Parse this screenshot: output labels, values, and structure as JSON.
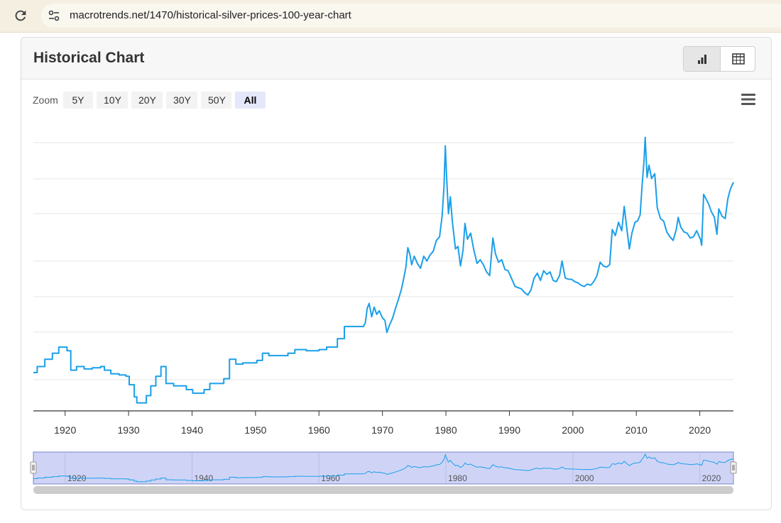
{
  "browser": {
    "url": "macrotrends.net/1470/historical-silver-prices-100-year-chart",
    "reload_icon": "reload-icon",
    "site_settings_icon": "tune-icon"
  },
  "card": {
    "title": "Historical Chart",
    "view_buttons": [
      {
        "name": "chart-view-button",
        "icon": "bar-chart-icon",
        "active": true
      },
      {
        "name": "table-view-button",
        "icon": "table-icon",
        "active": false
      }
    ]
  },
  "zoom": {
    "label": "Zoom",
    "options": [
      "5Y",
      "10Y",
      "20Y",
      "30Y",
      "50Y",
      "All"
    ],
    "selected": "All"
  },
  "chart_menu_icon": "hamburger-menu-icon",
  "colors": {
    "line": "#1a9fea",
    "navigator_fill": "#cfd4f7",
    "navigator_border": "#7b84c8",
    "grid": "#e6e6e6"
  },
  "chart_data": {
    "type": "line",
    "x_ticks": [
      "1920",
      "1930",
      "1940",
      "1950",
      "1960",
      "1970",
      "1980",
      "1990",
      "2000",
      "2010",
      "2020"
    ],
    "x_range": [
      1915,
      2025.3
    ],
    "grid": true,
    "series": [
      {
        "points": [
          [
            1915,
            0.31
          ],
          [
            1915.6,
            0.31
          ],
          [
            1915.6,
            0.36
          ],
          [
            1916.8,
            0.36
          ],
          [
            1916.8,
            0.42
          ],
          [
            1918,
            0.42
          ],
          [
            1918,
            0.47
          ],
          [
            1919,
            0.47
          ],
          [
            1919,
            0.52
          ],
          [
            1920.3,
            0.52
          ],
          [
            1920.3,
            0.49
          ],
          [
            1920.9,
            0.49
          ],
          [
            1920.9,
            0.33
          ],
          [
            1921.8,
            0.33
          ],
          [
            1921.8,
            0.36
          ],
          [
            1923,
            0.36
          ],
          [
            1923,
            0.34
          ],
          [
            1924.3,
            0.34
          ],
          [
            1924.3,
            0.35
          ],
          [
            1925.6,
            0.35
          ],
          [
            1925.6,
            0.36
          ],
          [
            1926.2,
            0.36
          ],
          [
            1926.2,
            0.33
          ],
          [
            1927.2,
            0.33
          ],
          [
            1927.2,
            0.3
          ],
          [
            1928.5,
            0.3
          ],
          [
            1928.5,
            0.29
          ],
          [
            1929.6,
            0.29
          ],
          [
            1929.6,
            0.28
          ],
          [
            1930.1,
            0.28
          ],
          [
            1930.1,
            0.21
          ],
          [
            1930.9,
            0.21
          ],
          [
            1930.9,
            0.11
          ],
          [
            1931.3,
            0.11
          ],
          [
            1931.3,
            0.06
          ],
          [
            1932.8,
            0.06
          ],
          [
            1932.8,
            0.12
          ],
          [
            1933.5,
            0.12
          ],
          [
            1933.5,
            0.2
          ],
          [
            1934.3,
            0.2
          ],
          [
            1934.3,
            0.28
          ],
          [
            1935.1,
            0.28
          ],
          [
            1935.1,
            0.36
          ],
          [
            1935.9,
            0.36
          ],
          [
            1935.9,
            0.22
          ],
          [
            1937.1,
            0.22
          ],
          [
            1937.1,
            0.2
          ],
          [
            1939.1,
            0.2
          ],
          [
            1939.1,
            0.17
          ],
          [
            1940.1,
            0.17
          ],
          [
            1940.1,
            0.14
          ],
          [
            1941.9,
            0.14
          ],
          [
            1941.9,
            0.17
          ],
          [
            1942.8,
            0.17
          ],
          [
            1942.8,
            0.22
          ],
          [
            1945,
            0.22
          ],
          [
            1945,
            0.26
          ],
          [
            1945.9,
            0.26
          ],
          [
            1945.9,
            0.42
          ],
          [
            1946.9,
            0.42
          ],
          [
            1946.9,
            0.38
          ],
          [
            1948,
            0.38
          ],
          [
            1948,
            0.39
          ],
          [
            1950.2,
            0.39
          ],
          [
            1950.2,
            0.41
          ],
          [
            1951.1,
            0.41
          ],
          [
            1951.1,
            0.47
          ],
          [
            1952.1,
            0.47
          ],
          [
            1952.1,
            0.45
          ],
          [
            1955.1,
            0.45
          ],
          [
            1955.1,
            0.47
          ],
          [
            1956.2,
            0.47
          ],
          [
            1956.2,
            0.5
          ],
          [
            1958,
            0.5
          ],
          [
            1958,
            0.49
          ],
          [
            1960,
            0.49
          ],
          [
            1960,
            0.5
          ],
          [
            1961.2,
            0.5
          ],
          [
            1961.2,
            0.52
          ],
          [
            1962.9,
            0.52
          ],
          [
            1962.9,
            0.59
          ],
          [
            1964,
            0.59
          ],
          [
            1964,
            0.69
          ],
          [
            1967,
            0.69
          ],
          [
            1967.3,
            0.72
          ],
          [
            1967.6,
            0.84
          ],
          [
            1967.9,
            0.88
          ],
          [
            1968.3,
            0.77
          ],
          [
            1968.7,
            0.85
          ],
          [
            1969.1,
            0.79
          ],
          [
            1969.5,
            0.82
          ],
          [
            1970,
            0.76
          ],
          [
            1970.4,
            0.74
          ],
          [
            1970.7,
            0.64
          ],
          [
            1971.1,
            0.7
          ],
          [
            1971.6,
            0.76
          ],
          [
            1972,
            0.83
          ],
          [
            1972.5,
            0.91
          ],
          [
            1973,
            1.0
          ],
          [
            1973.4,
            1.1
          ],
          [
            1973.7,
            1.18
          ],
          [
            1974,
            1.34
          ],
          [
            1974.3,
            1.29
          ],
          [
            1974.6,
            1.2
          ],
          [
            1975,
            1.27
          ],
          [
            1975.5,
            1.21
          ],
          [
            1976,
            1.17
          ],
          [
            1976.5,
            1.27
          ],
          [
            1977,
            1.23
          ],
          [
            1977.5,
            1.28
          ],
          [
            1978,
            1.31
          ],
          [
            1978.5,
            1.4
          ],
          [
            1979,
            1.43
          ],
          [
            1979.4,
            1.6
          ],
          [
            1979.7,
            1.85
          ],
          [
            1979.9,
            2.18
          ],
          [
            1980.1,
            1.94
          ],
          [
            1980.4,
            1.62
          ],
          [
            1980.7,
            1.76
          ],
          [
            1981,
            1.56
          ],
          [
            1981.5,
            1.33
          ],
          [
            1981.9,
            1.35
          ],
          [
            1982.3,
            1.19
          ],
          [
            1982.7,
            1.32
          ],
          [
            1983,
            1.54
          ],
          [
            1983.4,
            1.41
          ],
          [
            1983.9,
            1.46
          ],
          [
            1984.4,
            1.32
          ],
          [
            1984.9,
            1.21
          ],
          [
            1985.4,
            1.24
          ],
          [
            1985.9,
            1.2
          ],
          [
            1986.4,
            1.14
          ],
          [
            1986.9,
            1.11
          ],
          [
            1987.4,
            1.42
          ],
          [
            1987.8,
            1.29
          ],
          [
            1988.3,
            1.22
          ],
          [
            1988.8,
            1.24
          ],
          [
            1989.3,
            1.16
          ],
          [
            1989.8,
            1.15
          ],
          [
            1990.4,
            1.08
          ],
          [
            1990.9,
            1.02
          ],
          [
            1991.4,
            1.01
          ],
          [
            1991.9,
            1.0
          ],
          [
            1992.4,
            0.97
          ],
          [
            1992.9,
            0.95
          ],
          [
            1993.4,
            0.99
          ],
          [
            1993.9,
            1.09
          ],
          [
            1994.4,
            1.13
          ],
          [
            1994.9,
            1.07
          ],
          [
            1995.4,
            1.15
          ],
          [
            1995.9,
            1.12
          ],
          [
            1996.4,
            1.14
          ],
          [
            1996.9,
            1.07
          ],
          [
            1997.4,
            1.06
          ],
          [
            1997.9,
            1.11
          ],
          [
            1998.3,
            1.23
          ],
          [
            1998.8,
            1.09
          ],
          [
            1999.3,
            1.08
          ],
          [
            1999.8,
            1.08
          ],
          [
            2000.3,
            1.06
          ],
          [
            2000.8,
            1.05
          ],
          [
            2001.3,
            1.03
          ],
          [
            2001.8,
            1.02
          ],
          [
            2002.3,
            1.04
          ],
          [
            2002.8,
            1.03
          ],
          [
            2003.3,
            1.06
          ],
          [
            2003.8,
            1.11
          ],
          [
            2004.3,
            1.22
          ],
          [
            2004.8,
            1.19
          ],
          [
            2005.3,
            1.18
          ],
          [
            2005.8,
            1.2
          ],
          [
            2006.2,
            1.49
          ],
          [
            2006.7,
            1.44
          ],
          [
            2007.2,
            1.55
          ],
          [
            2007.7,
            1.48
          ],
          [
            2008.1,
            1.68
          ],
          [
            2008.5,
            1.5
          ],
          [
            2008.9,
            1.33
          ],
          [
            2009.3,
            1.46
          ],
          [
            2009.8,
            1.55
          ],
          [
            2010.2,
            1.56
          ],
          [
            2010.6,
            1.61
          ],
          [
            2010.9,
            1.85
          ],
          [
            2011.2,
            2.05
          ],
          [
            2011.4,
            2.25
          ],
          [
            2011.7,
            1.92
          ],
          [
            2012,
            2.02
          ],
          [
            2012.4,
            1.91
          ],
          [
            2012.9,
            1.95
          ],
          [
            2013.3,
            1.67
          ],
          [
            2013.8,
            1.58
          ],
          [
            2014.3,
            1.56
          ],
          [
            2014.8,
            1.47
          ],
          [
            2015.3,
            1.43
          ],
          [
            2015.8,
            1.4
          ],
          [
            2016.3,
            1.49
          ],
          [
            2016.6,
            1.59
          ],
          [
            2017,
            1.51
          ],
          [
            2017.5,
            1.47
          ],
          [
            2018,
            1.46
          ],
          [
            2018.5,
            1.42
          ],
          [
            2019,
            1.43
          ],
          [
            2019.5,
            1.48
          ],
          [
            2020.1,
            1.41
          ],
          [
            2020.3,
            1.36
          ],
          [
            2020.6,
            1.78
          ],
          [
            2021,
            1.74
          ],
          [
            2021.4,
            1.7
          ],
          [
            2021.8,
            1.64
          ],
          [
            2022.3,
            1.59
          ],
          [
            2022.7,
            1.45
          ],
          [
            2023,
            1.66
          ],
          [
            2023.5,
            1.6
          ],
          [
            2024,
            1.58
          ],
          [
            2024.4,
            1.74
          ],
          [
            2024.8,
            1.82
          ],
          [
            2025.3,
            1.88
          ]
        ]
      }
    ],
    "navigator": {
      "x_ticks": [
        "1920",
        "1940",
        "1960",
        "1980",
        "2000",
        "2020"
      ]
    }
  }
}
